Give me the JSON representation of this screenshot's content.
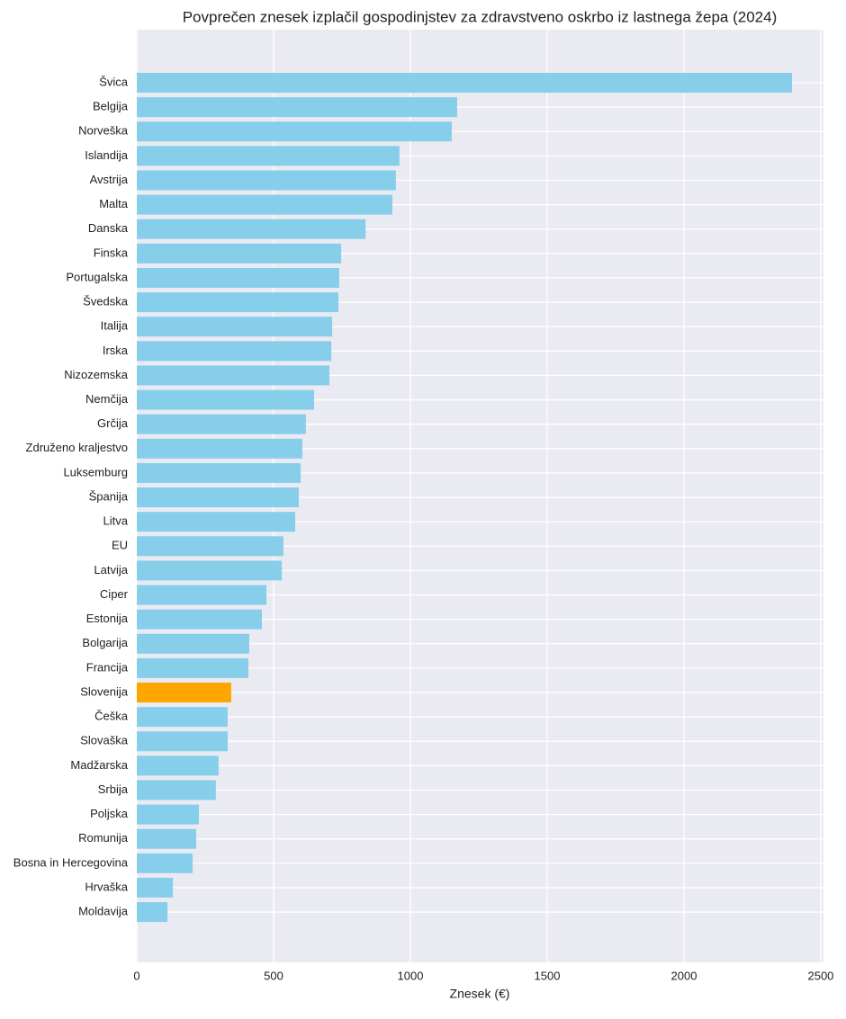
{
  "chart_data": {
    "type": "barh",
    "title": "Povprečen znesek izplačil gospodinjstev za zdravstveno oskrbo iz lastnega žepa (2024)",
    "xlabel": "Znesek (€)",
    "categories": [
      "Švica",
      "Belgija",
      "Norveška",
      "Islandija",
      "Avstrija",
      "Malta",
      "Danska",
      "Finska",
      "Portugalska",
      "Švedska",
      "Italija",
      "Irska",
      "Nizozemska",
      "Nemčija",
      "Grčija",
      "Združeno kraljestvo",
      "Luksemburg",
      "Španija",
      "Litva",
      "EU",
      "Latvija",
      "Ciper",
      "Estonija",
      "Bolgarija",
      "Francija",
      "Slovenija",
      "Češka",
      "Slovaška",
      "Madžarska",
      "Srbija",
      "Poljska",
      "Romunija",
      "Bosna in Hercegovina",
      "Hrvaška",
      "Moldavija"
    ],
    "values": [
      2395,
      1171,
      1151,
      960,
      947,
      934,
      836,
      747,
      740,
      737,
      714,
      711,
      704,
      648,
      618,
      605,
      599,
      592,
      579,
      536,
      530,
      474,
      457,
      411,
      408,
      345,
      332,
      332,
      299,
      289,
      227,
      217,
      204,
      132,
      112
    ],
    "colors": [
      "#87ceeb",
      "#87ceeb",
      "#87ceeb",
      "#87ceeb",
      "#87ceeb",
      "#87ceeb",
      "#87ceeb",
      "#87ceeb",
      "#87ceeb",
      "#87ceeb",
      "#87ceeb",
      "#87ceeb",
      "#87ceeb",
      "#87ceeb",
      "#87ceeb",
      "#87ceeb",
      "#87ceeb",
      "#87ceeb",
      "#87ceeb",
      "#87ceeb",
      "#87ceeb",
      "#87ceeb",
      "#87ceeb",
      "#87ceeb",
      "#87ceeb",
      "#ffa500",
      "#87ceeb",
      "#87ceeb",
      "#87ceeb",
      "#87ceeb",
      "#87ceeb",
      "#87ceeb",
      "#87ceeb",
      "#87ceeb",
      "#87ceeb"
    ],
    "xlim": [
      0,
      2510
    ],
    "xticks": [
      0,
      500,
      1000,
      1500,
      2000,
      2500
    ],
    "grid": true
  }
}
